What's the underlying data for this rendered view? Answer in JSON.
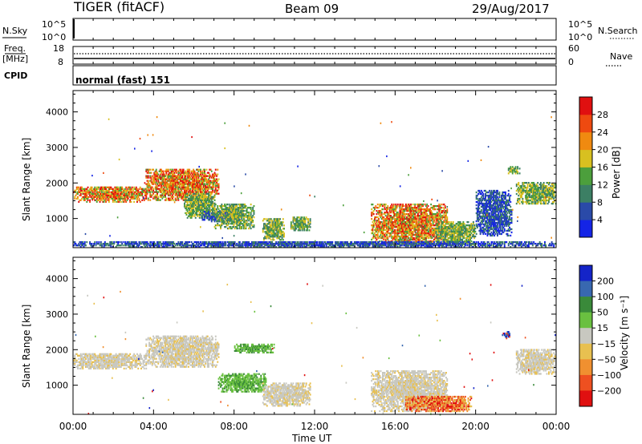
{
  "header": {
    "title": "TIGER (fitACF)",
    "beam": "Beam 09",
    "date": "29/Aug/2017"
  },
  "noise_panel": {
    "label": "N.Sky",
    "y_ticks": [
      "10^5",
      "10^0"
    ],
    "right_ticks": [
      "10^5",
      "10^0"
    ],
    "right_label": "N.Search"
  },
  "freq_panel": {
    "label_line1": "Freq.",
    "label_line2": "[MHz]",
    "left_ticks": [
      "18",
      "8"
    ],
    "right_ticks": [
      "60",
      "0"
    ],
    "right_label": "Nave"
  },
  "cpid_panel": {
    "label": "CPID",
    "text": "normal (fast) 151"
  },
  "x_axis": {
    "label": "Time UT",
    "ticks": [
      "00:00",
      "04:00",
      "08:00",
      "12:00",
      "16:00",
      "20:00",
      "00:00"
    ]
  },
  "chart_data": [
    {
      "type": "heatmap",
      "name": "power",
      "x": "Time UT (hours 0-24)",
      "ylabel": "Slant Range [km]",
      "ylim": [
        180,
        4600
      ],
      "y_ticks": [
        1000,
        2000,
        3000,
        4000
      ],
      "colorbar_label": "Power [dB]",
      "colorbar_ticks": [
        "4",
        "8",
        "12",
        "16",
        "20",
        "24",
        "28"
      ],
      "colorscale": [
        "#1424e6",
        "#2a4aa8",
        "#3c7f64",
        "#4c9f3c",
        "#d8c020",
        "#f08a10",
        "#ee4a10",
        "#e01010"
      ],
      "regions": [
        {
          "t": [
            0.0,
            3.6
          ],
          "r": [
            1450,
            1900
          ],
          "level": "high"
        },
        {
          "t": [
            3.6,
            7.2
          ],
          "r": [
            1500,
            2400
          ],
          "level": "high"
        },
        {
          "t": [
            5.5,
            7.0
          ],
          "r": [
            1000,
            1700
          ],
          "level": "medium"
        },
        {
          "t": [
            6.4,
            8.4
          ],
          "r": [
            900,
            1200
          ],
          "level": "low"
        },
        {
          "t": [
            7.0,
            9.0
          ],
          "r": [
            700,
            1400
          ],
          "level": "medium"
        },
        {
          "t": [
            9.4,
            10.5
          ],
          "r": [
            380,
            1000
          ],
          "level": "medium"
        },
        {
          "t": [
            10.8,
            11.8
          ],
          "r": [
            650,
            1050
          ],
          "level": "medium"
        },
        {
          "t": [
            14.8,
            18.6
          ],
          "r": [
            250,
            1400
          ],
          "level": "high"
        },
        {
          "t": [
            18.0,
            20.0
          ],
          "r": [
            250,
            900
          ],
          "level": "medium"
        },
        {
          "t": [
            20.0,
            21.8
          ],
          "r": [
            500,
            1800
          ],
          "level": "low"
        },
        {
          "t": [
            21.6,
            22.2
          ],
          "r": [
            2250,
            2450
          ],
          "level": "medium"
        },
        {
          "t": [
            22.0,
            24.0
          ],
          "r": [
            1400,
            2000
          ],
          "level": "medium"
        },
        {
          "t": [
            0.0,
            24.0
          ],
          "r": [
            180,
            350
          ],
          "level": "low"
        }
      ]
    },
    {
      "type": "heatmap",
      "name": "velocity",
      "x": "Time UT (hours 0-24)",
      "ylabel": "Slant Range [km]",
      "ylim": [
        180,
        4600
      ],
      "y_ticks": [
        1000,
        2000,
        3000,
        4000
      ],
      "colorbar_label": "Velocity [m s⁻¹]",
      "colorbar_ticks": [
        "200",
        "100",
        "50",
        "15",
        "−15",
        "−50",
        "−100",
        "−200"
      ],
      "colorscale": [
        "#1424c8",
        "#3868b0",
        "#3a8a3a",
        "#6ac040",
        "#c8c8c0",
        "#e8c050",
        "#f09030",
        "#ee5020",
        "#e01010"
      ],
      "regions": [
        {
          "t": [
            0.0,
            3.6
          ],
          "r": [
            1450,
            1900
          ],
          "level": "near-zero"
        },
        {
          "t": [
            3.6,
            7.2
          ],
          "r": [
            1500,
            2400
          ],
          "level": "near-zero"
        },
        {
          "t": [
            7.2,
            9.6
          ],
          "r": [
            800,
            1300
          ],
          "level": "positive"
        },
        {
          "t": [
            8.0,
            10.0
          ],
          "r": [
            1900,
            2150
          ],
          "level": "positive"
        },
        {
          "t": [
            9.4,
            11.8
          ],
          "r": [
            400,
            1050
          ],
          "level": "near-zero"
        },
        {
          "t": [
            14.8,
            18.6
          ],
          "r": [
            250,
            1400
          ],
          "level": "near-zero"
        },
        {
          "t": [
            16.5,
            19.8
          ],
          "r": [
            250,
            700
          ],
          "level": "negative"
        },
        {
          "t": [
            21.3,
            21.7
          ],
          "r": [
            2300,
            2500
          ],
          "level": "mixed"
        },
        {
          "t": [
            22.0,
            24.0
          ],
          "r": [
            1300,
            2000
          ],
          "level": "near-zero"
        }
      ]
    }
  ]
}
